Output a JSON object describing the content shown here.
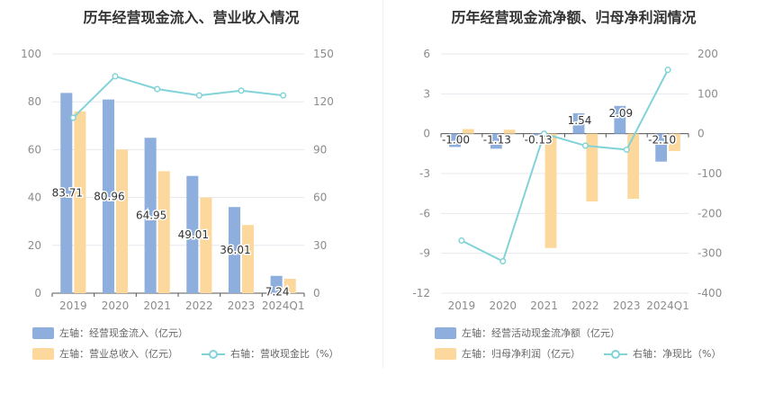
{
  "left": {
    "title": "历年经营现金流入、营业收入情况",
    "legend": {
      "bar1": "左轴：经营现金流入（亿元）",
      "bar2": "左轴：营业总收入（亿元）",
      "line": "右轴：营收现金比（%）"
    }
  },
  "right": {
    "title": "历年经营现金流净额、归母净利润情况",
    "legend": {
      "bar1": "左轴：经营活动现金流净额（亿元）",
      "bar2": "左轴：归母净利润（亿元）",
      "line": "右轴：净现比（%）"
    }
  },
  "colors": {
    "blue": "#8eaede",
    "orange": "#fdd89c",
    "teal": "#82d3d8",
    "grid": "#e6e8ee",
    "axis": "#8c8c8c",
    "label": "#333333"
  },
  "chart_data": [
    {
      "type": "bar",
      "title": "历年经营现金流入、营业收入情况",
      "categories": [
        "2019",
        "2020",
        "2021",
        "2022",
        "2023",
        "2024Q1"
      ],
      "left_axis": {
        "ylim": [
          0,
          100
        ],
        "ticks": [
          0,
          20,
          40,
          60,
          80,
          100
        ]
      },
      "right_axis": {
        "ylim": [
          0,
          150
        ],
        "ticks": [
          0,
          30,
          60,
          90,
          120,
          150
        ]
      },
      "series": [
        {
          "name": "左轴：经营现金流入（亿元）",
          "type": "bar",
          "axis": "left",
          "values": [
            83.71,
            80.96,
            64.95,
            49.01,
            36.01,
            7.24
          ],
          "labels": [
            "83.71",
            "80.96",
            "64.95",
            "49.01",
            "36.01",
            "7.24"
          ]
        },
        {
          "name": "左轴：营业总收入（亿元）",
          "type": "bar",
          "axis": "left",
          "values": [
            76,
            60,
            51,
            40,
            28.5,
            6
          ]
        },
        {
          "name": "右轴：营收现金比（%）",
          "type": "line",
          "axis": "right",
          "values": [
            110,
            136,
            128,
            124,
            127,
            124
          ]
        }
      ],
      "legend_position": "bottom"
    },
    {
      "type": "bar",
      "title": "历年经营现金流净额、归母净利润情况",
      "categories": [
        "2019",
        "2020",
        "2021",
        "2022",
        "2023",
        "2024Q1"
      ],
      "left_axis": {
        "ylim": [
          -12,
          6
        ],
        "ticks": [
          -12,
          -9,
          -6,
          -3,
          0,
          3,
          6
        ]
      },
      "right_axis": {
        "ylim": [
          -400,
          200
        ],
        "ticks": [
          -400,
          -300,
          -200,
          -100,
          0,
          100,
          200
        ]
      },
      "series": [
        {
          "name": "左轴：经营活动现金流净额（亿元）",
          "type": "bar",
          "axis": "left",
          "values": [
            -1.0,
            -1.13,
            -0.13,
            1.54,
            2.09,
            -2.1
          ],
          "labels": [
            "-1.00",
            "-1.13",
            "-0.13",
            "1.54",
            "2.09",
            "-2.10"
          ]
        },
        {
          "name": "左轴：归母净利润（亿元）",
          "type": "bar",
          "axis": "left",
          "values": [
            0.35,
            0.3,
            -8.6,
            -5.1,
            -4.9,
            -1.3
          ]
        },
        {
          "name": "右轴：净现比（%）",
          "type": "line",
          "axis": "right",
          "values": [
            -268,
            -320,
            0,
            -30,
            -40,
            160
          ]
        }
      ],
      "legend_position": "bottom"
    }
  ]
}
